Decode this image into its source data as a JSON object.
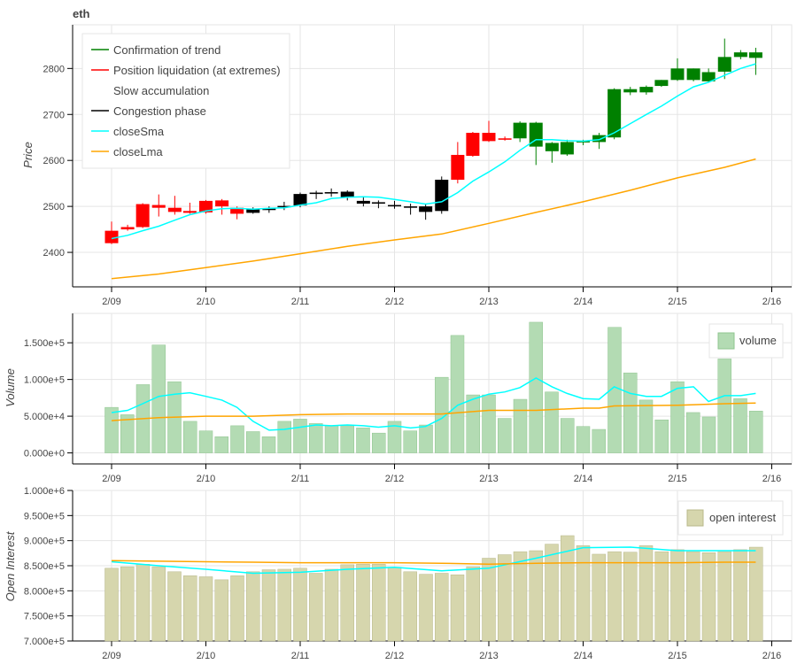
{
  "chart_data": [
    {
      "type": "candlestick",
      "title": "eth",
      "ylabel": "Price",
      "ylim": [
        2325,
        2895
      ],
      "yticks": [
        2400,
        2500,
        2600,
        2700,
        2800
      ],
      "xticks": [
        "2/09",
        "2/10",
        "2/11",
        "2/12",
        "2/13",
        "2/14",
        "2/15",
        "2/16"
      ],
      "colors": {
        "up": "#008000",
        "down": "#ff0000",
        "neutral": "#000000",
        "sma": "#00ffff",
        "lma": "#ffa500"
      },
      "legend": {
        "position": "top-left",
        "items": [
          {
            "label": "Confirmation of trend",
            "color": "#008000"
          },
          {
            "label": "Position liquidation (at extremes)",
            "color": "#ff0000"
          },
          {
            "label": "Slow accumulation",
            "color": "#ffffff"
          },
          {
            "label": "Congestion phase",
            "color": "#000000"
          },
          {
            "label": "closeSma",
            "color": "#00ffff"
          },
          {
            "label": "closeLma",
            "color": "#ffa500"
          }
        ]
      },
      "candles": [
        {
          "t": 0.0,
          "o": 2447,
          "h": 2467,
          "l": 2418,
          "c": 2420,
          "cls": "down"
        },
        {
          "t": 0.17,
          "o": 2455,
          "h": 2460,
          "l": 2447,
          "c": 2450,
          "cls": "down"
        },
        {
          "t": 0.33,
          "o": 2505,
          "h": 2507,
          "l": 2453,
          "c": 2455,
          "cls": "down"
        },
        {
          "t": 0.5,
          "o": 2503,
          "h": 2526,
          "l": 2478,
          "c": 2497,
          "cls": "down"
        },
        {
          "t": 0.67,
          "o": 2497,
          "h": 2523,
          "l": 2482,
          "c": 2488,
          "cls": "down"
        },
        {
          "t": 0.83,
          "o": 2490,
          "h": 2508,
          "l": 2484,
          "c": 2486,
          "cls": "down"
        },
        {
          "t": 1.0,
          "o": 2512,
          "h": 2514,
          "l": 2484,
          "c": 2487,
          "cls": "down"
        },
        {
          "t": 1.17,
          "o": 2513,
          "h": 2516,
          "l": 2482,
          "c": 2500,
          "cls": "down"
        },
        {
          "t": 1.33,
          "o": 2497,
          "h": 2500,
          "l": 2472,
          "c": 2484,
          "cls": "down"
        },
        {
          "t": 1.5,
          "o": 2494,
          "h": 2498,
          "l": 2484,
          "c": 2486,
          "cls": "neutral"
        },
        {
          "t": 1.67,
          "o": 2492,
          "h": 2500,
          "l": 2486,
          "c": 2496,
          "cls": "neutral"
        },
        {
          "t": 1.83,
          "o": 2498,
          "h": 2510,
          "l": 2492,
          "c": 2501,
          "cls": "neutral"
        },
        {
          "t": 2.0,
          "o": 2502,
          "h": 2530,
          "l": 2498,
          "c": 2527,
          "cls": "neutral"
        },
        {
          "t": 2.17,
          "o": 2527,
          "h": 2534,
          "l": 2516,
          "c": 2530,
          "cls": "neutral"
        },
        {
          "t": 2.33,
          "o": 2531,
          "h": 2539,
          "l": 2521,
          "c": 2528,
          "cls": "neutral"
        },
        {
          "t": 2.5,
          "o": 2532,
          "h": 2535,
          "l": 2513,
          "c": 2520,
          "cls": "neutral"
        },
        {
          "t": 2.67,
          "o": 2512,
          "h": 2520,
          "l": 2500,
          "c": 2506,
          "cls": "neutral"
        },
        {
          "t": 2.83,
          "o": 2506,
          "h": 2513,
          "l": 2496,
          "c": 2509,
          "cls": "neutral"
        },
        {
          "t": 3.0,
          "o": 2503,
          "h": 2512,
          "l": 2495,
          "c": 2500,
          "cls": "neutral"
        },
        {
          "t": 3.17,
          "o": 2500,
          "h": 2506,
          "l": 2482,
          "c": 2497,
          "cls": "neutral"
        },
        {
          "t": 3.33,
          "o": 2488,
          "h": 2506,
          "l": 2471,
          "c": 2500,
          "cls": "neutral"
        },
        {
          "t": 3.5,
          "o": 2490,
          "h": 2565,
          "l": 2484,
          "c": 2558,
          "cls": "neutral"
        },
        {
          "t": 3.67,
          "o": 2612,
          "h": 2640,
          "l": 2550,
          "c": 2558,
          "cls": "down"
        },
        {
          "t": 3.83,
          "o": 2660,
          "h": 2662,
          "l": 2608,
          "c": 2610,
          "cls": "down"
        },
        {
          "t": 4.0,
          "o": 2660,
          "h": 2686,
          "l": 2640,
          "c": 2642,
          "cls": "down"
        },
        {
          "t": 4.17,
          "o": 2648,
          "h": 2652,
          "l": 2643,
          "c": 2645,
          "cls": "down"
        },
        {
          "t": 4.33,
          "o": 2648,
          "h": 2685,
          "l": 2640,
          "c": 2682,
          "cls": "up"
        },
        {
          "t": 4.5,
          "o": 2682,
          "h": 2684,
          "l": 2590,
          "c": 2630,
          "cls": "up"
        },
        {
          "t": 4.67,
          "o": 2620,
          "h": 2640,
          "l": 2595,
          "c": 2638,
          "cls": "up"
        },
        {
          "t": 4.83,
          "o": 2613,
          "h": 2645,
          "l": 2610,
          "c": 2640,
          "cls": "up"
        },
        {
          "t": 5.0,
          "o": 2640,
          "h": 2645,
          "l": 2633,
          "c": 2642,
          "cls": "up"
        },
        {
          "t": 5.17,
          "o": 2640,
          "h": 2660,
          "l": 2625,
          "c": 2655,
          "cls": "up"
        },
        {
          "t": 5.33,
          "o": 2650,
          "h": 2757,
          "l": 2646,
          "c": 2755,
          "cls": "up"
        },
        {
          "t": 5.5,
          "o": 2748,
          "h": 2760,
          "l": 2742,
          "c": 2755,
          "cls": "up"
        },
        {
          "t": 5.67,
          "o": 2748,
          "h": 2763,
          "l": 2743,
          "c": 2760,
          "cls": "up"
        },
        {
          "t": 5.83,
          "o": 2762,
          "h": 2775,
          "l": 2760,
          "c": 2775,
          "cls": "up"
        },
        {
          "t": 6.0,
          "o": 2775,
          "h": 2822,
          "l": 2773,
          "c": 2800,
          "cls": "up"
        },
        {
          "t": 6.17,
          "o": 2775,
          "h": 2800,
          "l": 2772,
          "c": 2800,
          "cls": "up"
        },
        {
          "t": 6.33,
          "o": 2772,
          "h": 2800,
          "l": 2770,
          "c": 2792,
          "cls": "up"
        },
        {
          "t": 6.5,
          "o": 2793,
          "h": 2865,
          "l": 2777,
          "c": 2825,
          "cls": "up"
        },
        {
          "t": 6.67,
          "o": 2825,
          "h": 2840,
          "l": 2820,
          "c": 2835,
          "cls": "up"
        },
        {
          "t": 6.83,
          "o": 2823,
          "h": 2845,
          "l": 2786,
          "c": 2835,
          "cls": "up"
        }
      ],
      "close_sma": [
        [
          0,
          2430
        ],
        [
          0.17,
          2437
        ],
        [
          0.33,
          2447
        ],
        [
          0.5,
          2457
        ],
        [
          0.67,
          2470
        ],
        [
          0.83,
          2482
        ],
        [
          1.0,
          2490
        ],
        [
          1.17,
          2495
        ],
        [
          1.33,
          2496
        ],
        [
          1.5,
          2494
        ],
        [
          1.67,
          2496
        ],
        [
          1.83,
          2497
        ],
        [
          2.0,
          2503
        ],
        [
          2.17,
          2508
        ],
        [
          2.33,
          2517
        ],
        [
          2.5,
          2520
        ],
        [
          2.67,
          2521
        ],
        [
          2.83,
          2520
        ],
        [
          3.0,
          2515
        ],
        [
          3.17,
          2510
        ],
        [
          3.33,
          2505
        ],
        [
          3.5,
          2510
        ],
        [
          3.67,
          2530
        ],
        [
          3.83,
          2555
        ],
        [
          4.0,
          2575
        ],
        [
          4.17,
          2597
        ],
        [
          4.33,
          2622
        ],
        [
          4.5,
          2645
        ],
        [
          4.67,
          2645
        ],
        [
          4.83,
          2643
        ],
        [
          5.0,
          2642
        ],
        [
          5.17,
          2645
        ],
        [
          5.33,
          2660
        ],
        [
          5.5,
          2680
        ],
        [
          5.67,
          2700
        ],
        [
          5.83,
          2718
        ],
        [
          6.0,
          2740
        ],
        [
          6.17,
          2760
        ],
        [
          6.33,
          2770
        ],
        [
          6.5,
          2785
        ],
        [
          6.67,
          2800
        ],
        [
          6.83,
          2810
        ]
      ],
      "close_lma": [
        [
          0,
          2343
        ],
        [
          0.5,
          2353
        ],
        [
          1.0,
          2367
        ],
        [
          1.5,
          2381
        ],
        [
          2.0,
          2397
        ],
        [
          2.5,
          2413
        ],
        [
          3.0,
          2427
        ],
        [
          3.5,
          2440
        ],
        [
          4.0,
          2463
        ],
        [
          4.5,
          2487
        ],
        [
          5.0,
          2510
        ],
        [
          5.5,
          2535
        ],
        [
          6.0,
          2562
        ],
        [
          6.5,
          2585
        ],
        [
          6.83,
          2603
        ]
      ]
    },
    {
      "type": "bar",
      "ylabel": "Volume",
      "ylim": [
        -15000,
        190000
      ],
      "yticks": [
        0,
        50000,
        100000,
        150000
      ],
      "ytick_labels": [
        "0.000e+0",
        "5.000e+4",
        "1.000e+5",
        "1.500e+5"
      ],
      "xticks": [
        "2/09",
        "2/10",
        "2/11",
        "2/12",
        "2/13",
        "2/14",
        "2/15",
        "2/16"
      ],
      "legend": {
        "position": "top-right",
        "label": "volume"
      },
      "colors": {
        "bar_fill": "#b3dbb3",
        "bar_edge": "#8fc48f",
        "sma": "#00ffff",
        "lma": "#ffa500"
      },
      "values": [
        62000,
        52000,
        93000,
        147000,
        97000,
        43000,
        30000,
        22000,
        37000,
        29000,
        22000,
        43000,
        46000,
        40000,
        37000,
        37000,
        34000,
        27000,
        43000,
        30000,
        38000,
        103000,
        160000,
        79000,
        79000,
        47000,
        73000,
        178000,
        83000,
        47000,
        36000,
        32000,
        171000,
        109000,
        72000,
        45000,
        97000,
        55000,
        49000,
        128000,
        74000,
        57000
      ],
      "sma": [
        [
          0,
          55000
        ],
        [
          0.17,
          58000
        ],
        [
          0.33,
          67000
        ],
        [
          0.5,
          77000
        ],
        [
          0.67,
          80000
        ],
        [
          0.83,
          82000
        ],
        [
          1.0,
          77000
        ],
        [
          1.17,
          72000
        ],
        [
          1.33,
          62000
        ],
        [
          1.5,
          43000
        ],
        [
          1.67,
          31000
        ],
        [
          1.83,
          32000
        ],
        [
          2.0,
          35000
        ],
        [
          2.17,
          38000
        ],
        [
          2.33,
          37000
        ],
        [
          2.5,
          38000
        ],
        [
          2.67,
          37000
        ],
        [
          2.83,
          35000
        ],
        [
          3.0,
          37000
        ],
        [
          3.17,
          34000
        ],
        [
          3.33,
          36000
        ],
        [
          3.5,
          47000
        ],
        [
          3.67,
          65000
        ],
        [
          3.83,
          73000
        ],
        [
          4.0,
          80000
        ],
        [
          4.17,
          83000
        ],
        [
          4.33,
          89000
        ],
        [
          4.5,
          102000
        ],
        [
          4.67,
          90000
        ],
        [
          4.83,
          81000
        ],
        [
          5.0,
          74000
        ],
        [
          5.17,
          73000
        ],
        [
          5.33,
          90000
        ],
        [
          5.5,
          81000
        ],
        [
          5.67,
          77000
        ],
        [
          5.83,
          77000
        ],
        [
          6.0,
          88000
        ],
        [
          6.17,
          90000
        ],
        [
          6.33,
          70000
        ],
        [
          6.5,
          78000
        ],
        [
          6.67,
          78000
        ],
        [
          6.83,
          81000
        ]
      ],
      "lma": [
        [
          0,
          44000
        ],
        [
          0.5,
          48000
        ],
        [
          1.0,
          50000
        ],
        [
          1.5,
          50000
        ],
        [
          2.0,
          52000
        ],
        [
          2.5,
          53000
        ],
        [
          3.0,
          53000
        ],
        [
          3.5,
          53000
        ],
        [
          4.0,
          58000
        ],
        [
          4.5,
          58000
        ],
        [
          5.0,
          61000
        ],
        [
          5.17,
          61000
        ],
        [
          5.33,
          64000
        ],
        [
          6.0,
          65000
        ],
        [
          6.5,
          67000
        ],
        [
          6.83,
          68000
        ]
      ]
    },
    {
      "type": "bar",
      "ylabel": "Open Interest",
      "ylim": [
        700000,
        1000000
      ],
      "yticks": [
        700000,
        750000,
        800000,
        850000,
        900000,
        950000,
        1000000
      ],
      "ytick_labels": [
        "7.000e+5",
        "7.500e+5",
        "8.000e+5",
        "8.500e+5",
        "9.000e+5",
        "9.500e+5",
        "1.000e+6"
      ],
      "xticks": [
        "2/09",
        "2/10",
        "2/11",
        "2/12",
        "2/13",
        "2/14",
        "2/15",
        "2/16"
      ],
      "legend": {
        "position": "top-right",
        "label": "open interest"
      },
      "colors": {
        "bar_fill": "#d6d6ad",
        "bar_edge": "#b8b88a",
        "sma": "#00ffff",
        "lma": "#ffa500"
      },
      "values": [
        845000,
        848000,
        853000,
        848000,
        838000,
        830000,
        828000,
        822000,
        830000,
        838000,
        842000,
        843000,
        845000,
        835000,
        843000,
        852000,
        853000,
        853000,
        847000,
        838000,
        833000,
        835000,
        832000,
        848000,
        865000,
        872000,
        878000,
        880000,
        893000,
        910000,
        890000,
        873000,
        878000,
        877000,
        890000,
        878000,
        882000,
        878000,
        876000,
        878000,
        882000,
        887000
      ],
      "sma": [
        [
          0,
          858000
        ],
        [
          0.5,
          850000
        ],
        [
          1.0,
          843000
        ],
        [
          1.5,
          835000
        ],
        [
          2.0,
          837000
        ],
        [
          2.5,
          843000
        ],
        [
          3.0,
          847000
        ],
        [
          3.5,
          840000
        ],
        [
          4.0,
          845000
        ],
        [
          4.5,
          865000
        ],
        [
          5.0,
          886000
        ],
        [
          5.5,
          887000
        ],
        [
          6.0,
          880000
        ],
        [
          6.5,
          880000
        ],
        [
          6.83,
          880000
        ]
      ],
      "lma": [
        [
          0,
          860000
        ],
        [
          0.5,
          859000
        ],
        [
          1.0,
          858000
        ],
        [
          1.5,
          857000
        ],
        [
          2.0,
          856000
        ],
        [
          2.5,
          856000
        ],
        [
          3.0,
          856000
        ],
        [
          3.5,
          855000
        ],
        [
          4.0,
          853000
        ],
        [
          4.5,
          855000
        ],
        [
          5.0,
          856000
        ],
        [
          5.5,
          856000
        ],
        [
          6.0,
          856000
        ],
        [
          6.5,
          857000
        ],
        [
          6.83,
          857000
        ]
      ]
    }
  ]
}
